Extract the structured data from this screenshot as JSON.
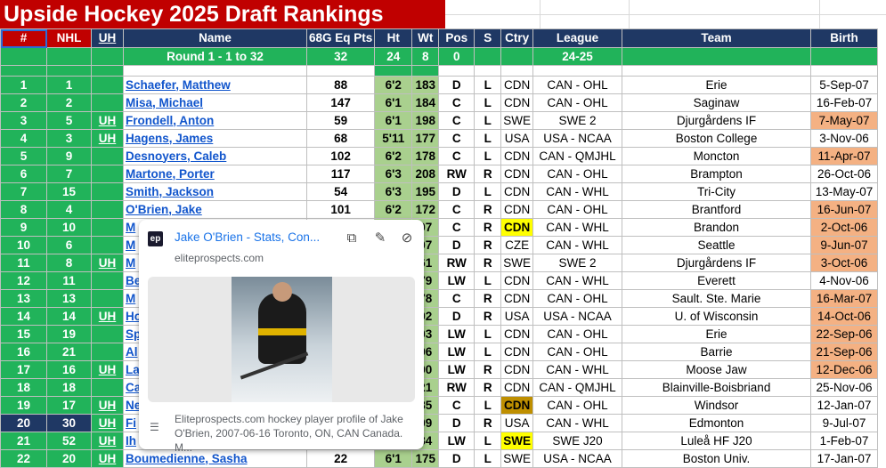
{
  "title": "Upside Hockey 2025 Draft Rankings",
  "headers": [
    "#",
    "NHL",
    "UH",
    "Name",
    "68G Eq Pts",
    "Ht",
    "Wt",
    "Pos",
    "S",
    "Ctry",
    "League",
    "Team",
    "Birth"
  ],
  "round_row": {
    "label": "Round 1 - 1 to 32",
    "pts": "32",
    "ht": "24",
    "wt": "8",
    "pos": "0",
    "league": "24-25"
  },
  "rows": [
    {
      "rank": "1",
      "nhl": "1",
      "uh": "",
      "name": "Schaefer, Matthew",
      "pts": "88",
      "ht": "6'2",
      "wt": "183",
      "pos": "D",
      "s": "L",
      "ctry": "CDN",
      "league": "CAN - OHL",
      "team": "Erie",
      "birth": "5-Sep-07"
    },
    {
      "rank": "2",
      "nhl": "2",
      "uh": "",
      "name": "Misa, Michael",
      "pts": "147",
      "ht": "6'1",
      "wt": "184",
      "pos": "C",
      "s": "L",
      "ctry": "CDN",
      "league": "CAN - OHL",
      "team": "Saginaw",
      "birth": "16-Feb-07"
    },
    {
      "rank": "3",
      "nhl": "5",
      "uh": "UH",
      "name": "Frondell, Anton",
      "pts": "59",
      "ht": "6'1",
      "wt": "198",
      "pos": "C",
      "s": "L",
      "ctry": "SWE",
      "league": "SWE 2",
      "team": "Djurgårdens IF",
      "birth": "7-May-07"
    },
    {
      "rank": "4",
      "nhl": "3",
      "uh": "UH",
      "name": "Hagens, James",
      "pts": "68",
      "ht": "5'11",
      "wt": "177",
      "pos": "C",
      "s": "L",
      "ctry": "USA",
      "league": "USA - NCAA",
      "team": "Boston College",
      "birth": "3-Nov-06"
    },
    {
      "rank": "5",
      "nhl": "9",
      "uh": "",
      "name": "Desnoyers, Caleb",
      "pts": "102",
      "ht": "6'2",
      "wt": "178",
      "pos": "C",
      "s": "L",
      "ctry": "CDN",
      "league": "CAN - QMJHL",
      "team": "Moncton",
      "birth": "11-Apr-07"
    },
    {
      "rank": "6",
      "nhl": "7",
      "uh": "",
      "name": "Martone, Porter",
      "pts": "117",
      "ht": "6'3",
      "wt": "208",
      "pos": "RW",
      "s": "R",
      "ctry": "CDN",
      "league": "CAN - OHL",
      "team": "Brampton",
      "birth": "26-Oct-06"
    },
    {
      "rank": "7",
      "nhl": "15",
      "uh": "",
      "name": "Smith, Jackson",
      "pts": "54",
      "ht": "6'3",
      "wt": "195",
      "pos": "D",
      "s": "L",
      "ctry": "CDN",
      "league": "CAN - WHL",
      "team": "Tri-City",
      "birth": "13-May-07"
    },
    {
      "rank": "8",
      "nhl": "4",
      "uh": "",
      "name": "O'Brien, Jake",
      "pts": "101",
      "ht": "6'2",
      "wt": "172",
      "pos": "C",
      "s": "R",
      "ctry": "CDN",
      "league": "CAN - OHL",
      "team": "Brantford",
      "birth": "16-Jun-07"
    },
    {
      "rank": "9",
      "nhl": "10",
      "uh": "",
      "name": "M",
      "pts": "",
      "ht": "",
      "wt": "97",
      "pos": "C",
      "s": "R",
      "ctry": "CDN",
      "league": "CAN - WHL",
      "team": "Brandon",
      "birth": "2-Oct-06"
    },
    {
      "rank": "10",
      "nhl": "6",
      "uh": "",
      "name": "M",
      "pts": "",
      "ht": "",
      "wt": "07",
      "pos": "D",
      "s": "R",
      "ctry": "CZE",
      "league": "CAN - WHL",
      "team": "Seattle",
      "birth": "9-Jun-07"
    },
    {
      "rank": "11",
      "nhl": "8",
      "uh": "UH",
      "name": "M",
      "pts": "",
      "ht": "",
      "wt": "61",
      "pos": "RW",
      "s": "R",
      "ctry": "SWE",
      "league": "SWE 2",
      "team": "Djurgårdens IF",
      "birth": "3-Oct-06"
    },
    {
      "rank": "12",
      "nhl": "11",
      "uh": "",
      "name": "Be",
      "pts": "",
      "ht": "",
      "wt": "79",
      "pos": "LW",
      "s": "L",
      "ctry": "CDN",
      "league": "CAN - WHL",
      "team": "Everett",
      "birth": "4-Nov-06"
    },
    {
      "rank": "13",
      "nhl": "13",
      "uh": "",
      "name": "M",
      "pts": "",
      "ht": "",
      "wt": "78",
      "pos": "C",
      "s": "R",
      "ctry": "CDN",
      "league": "CAN - OHL",
      "team": "Sault. Ste. Marie",
      "birth": "16-Mar-07"
    },
    {
      "rank": "14",
      "nhl": "14",
      "uh": "UH",
      "name": "Ho",
      "pts": "",
      "ht": "",
      "wt": "92",
      "pos": "D",
      "s": "R",
      "ctry": "USA",
      "league": "USA - NCAA",
      "team": "U. of Wisconsin",
      "birth": "14-Oct-06"
    },
    {
      "rank": "15",
      "nhl": "19",
      "uh": "",
      "name": "Sp",
      "pts": "",
      "ht": "",
      "wt": "03",
      "pos": "LW",
      "s": "L",
      "ctry": "CDN",
      "league": "CAN - OHL",
      "team": "Erie",
      "birth": "22-Sep-06"
    },
    {
      "rank": "16",
      "nhl": "21",
      "uh": "",
      "name": "Al",
      "pts": "",
      "ht": "",
      "wt": "96",
      "pos": "LW",
      "s": "L",
      "ctry": "CDN",
      "league": "CAN - OHL",
      "team": "Barrie",
      "birth": "21-Sep-06"
    },
    {
      "rank": "17",
      "nhl": "16",
      "uh": "UH",
      "name": "La",
      "pts": "",
      "ht": "",
      "wt": "90",
      "pos": "LW",
      "s": "R",
      "ctry": "CDN",
      "league": "CAN - WHL",
      "team": "Moose Jaw",
      "birth": "12-Dec-06"
    },
    {
      "rank": "18",
      "nhl": "18",
      "uh": "",
      "name": "Ca",
      "pts": "",
      "ht": "",
      "wt": "21",
      "pos": "RW",
      "s": "R",
      "ctry": "CDN",
      "league": "CAN - QMJHL",
      "team": "Blainville-Boisbriand",
      "birth": "25-Nov-06"
    },
    {
      "rank": "19",
      "nhl": "17",
      "uh": "UH",
      "name": "Ne",
      "pts": "",
      "ht": "",
      "wt": "85",
      "pos": "C",
      "s": "L",
      "ctry": "CDN",
      "league": "CAN - OHL",
      "team": "Windsor",
      "birth": "12-Jan-07"
    },
    {
      "rank": "20",
      "nhl": "30",
      "uh": "UH",
      "name": "Fi",
      "pts": "",
      "ht": "",
      "wt": "09",
      "pos": "D",
      "s": "R",
      "ctry": "USA",
      "league": "CAN - WHL",
      "team": "Edmonton",
      "birth": "9-Jul-07"
    },
    {
      "rank": "21",
      "nhl": "52",
      "uh": "UH",
      "name": "Ih",
      "pts": "",
      "ht": "",
      "wt": "84",
      "pos": "LW",
      "s": "L",
      "ctry": "SWE",
      "league": "SWE J20",
      "team": "Luleå HF J20",
      "birth": "1-Feb-07"
    },
    {
      "rank": "22",
      "nhl": "20",
      "uh": "UH",
      "name": "Boumedienne, Sasha",
      "pts": "22",
      "ht": "6'1",
      "wt": "175",
      "pos": "D",
      "s": "L",
      "ctry": "SWE",
      "league": "USA - NCAA",
      "team": "Boston Univ.",
      "birth": "17-Jan-07"
    }
  ],
  "highlight_birth_rows": [
    3,
    5,
    8,
    9,
    10,
    11,
    13,
    14,
    15,
    16,
    17
  ],
  "ctry_yellow_rows": [
    9,
    21
  ],
  "ctry_gold_rows": [
    19
  ],
  "selected_row": 20,
  "colors": {
    "banner": "#c00000",
    "header": "#1f3864",
    "green": "#21b35a",
    "ht_wt": "#a9d08e",
    "birth_hl": "#f4b183",
    "link": "#1155cc"
  },
  "popup": {
    "title": "Jake O'Brien - Stats, Con...",
    "domain": "eliteprospects.com",
    "favicon": "ep",
    "description": "Eliteprospects.com hockey player profile of Jake O'Brien, 2007-06-16 Toronto, ON, CAN Canada. M...",
    "icons": [
      "copy-icon",
      "edit-icon",
      "unlink-icon"
    ]
  }
}
